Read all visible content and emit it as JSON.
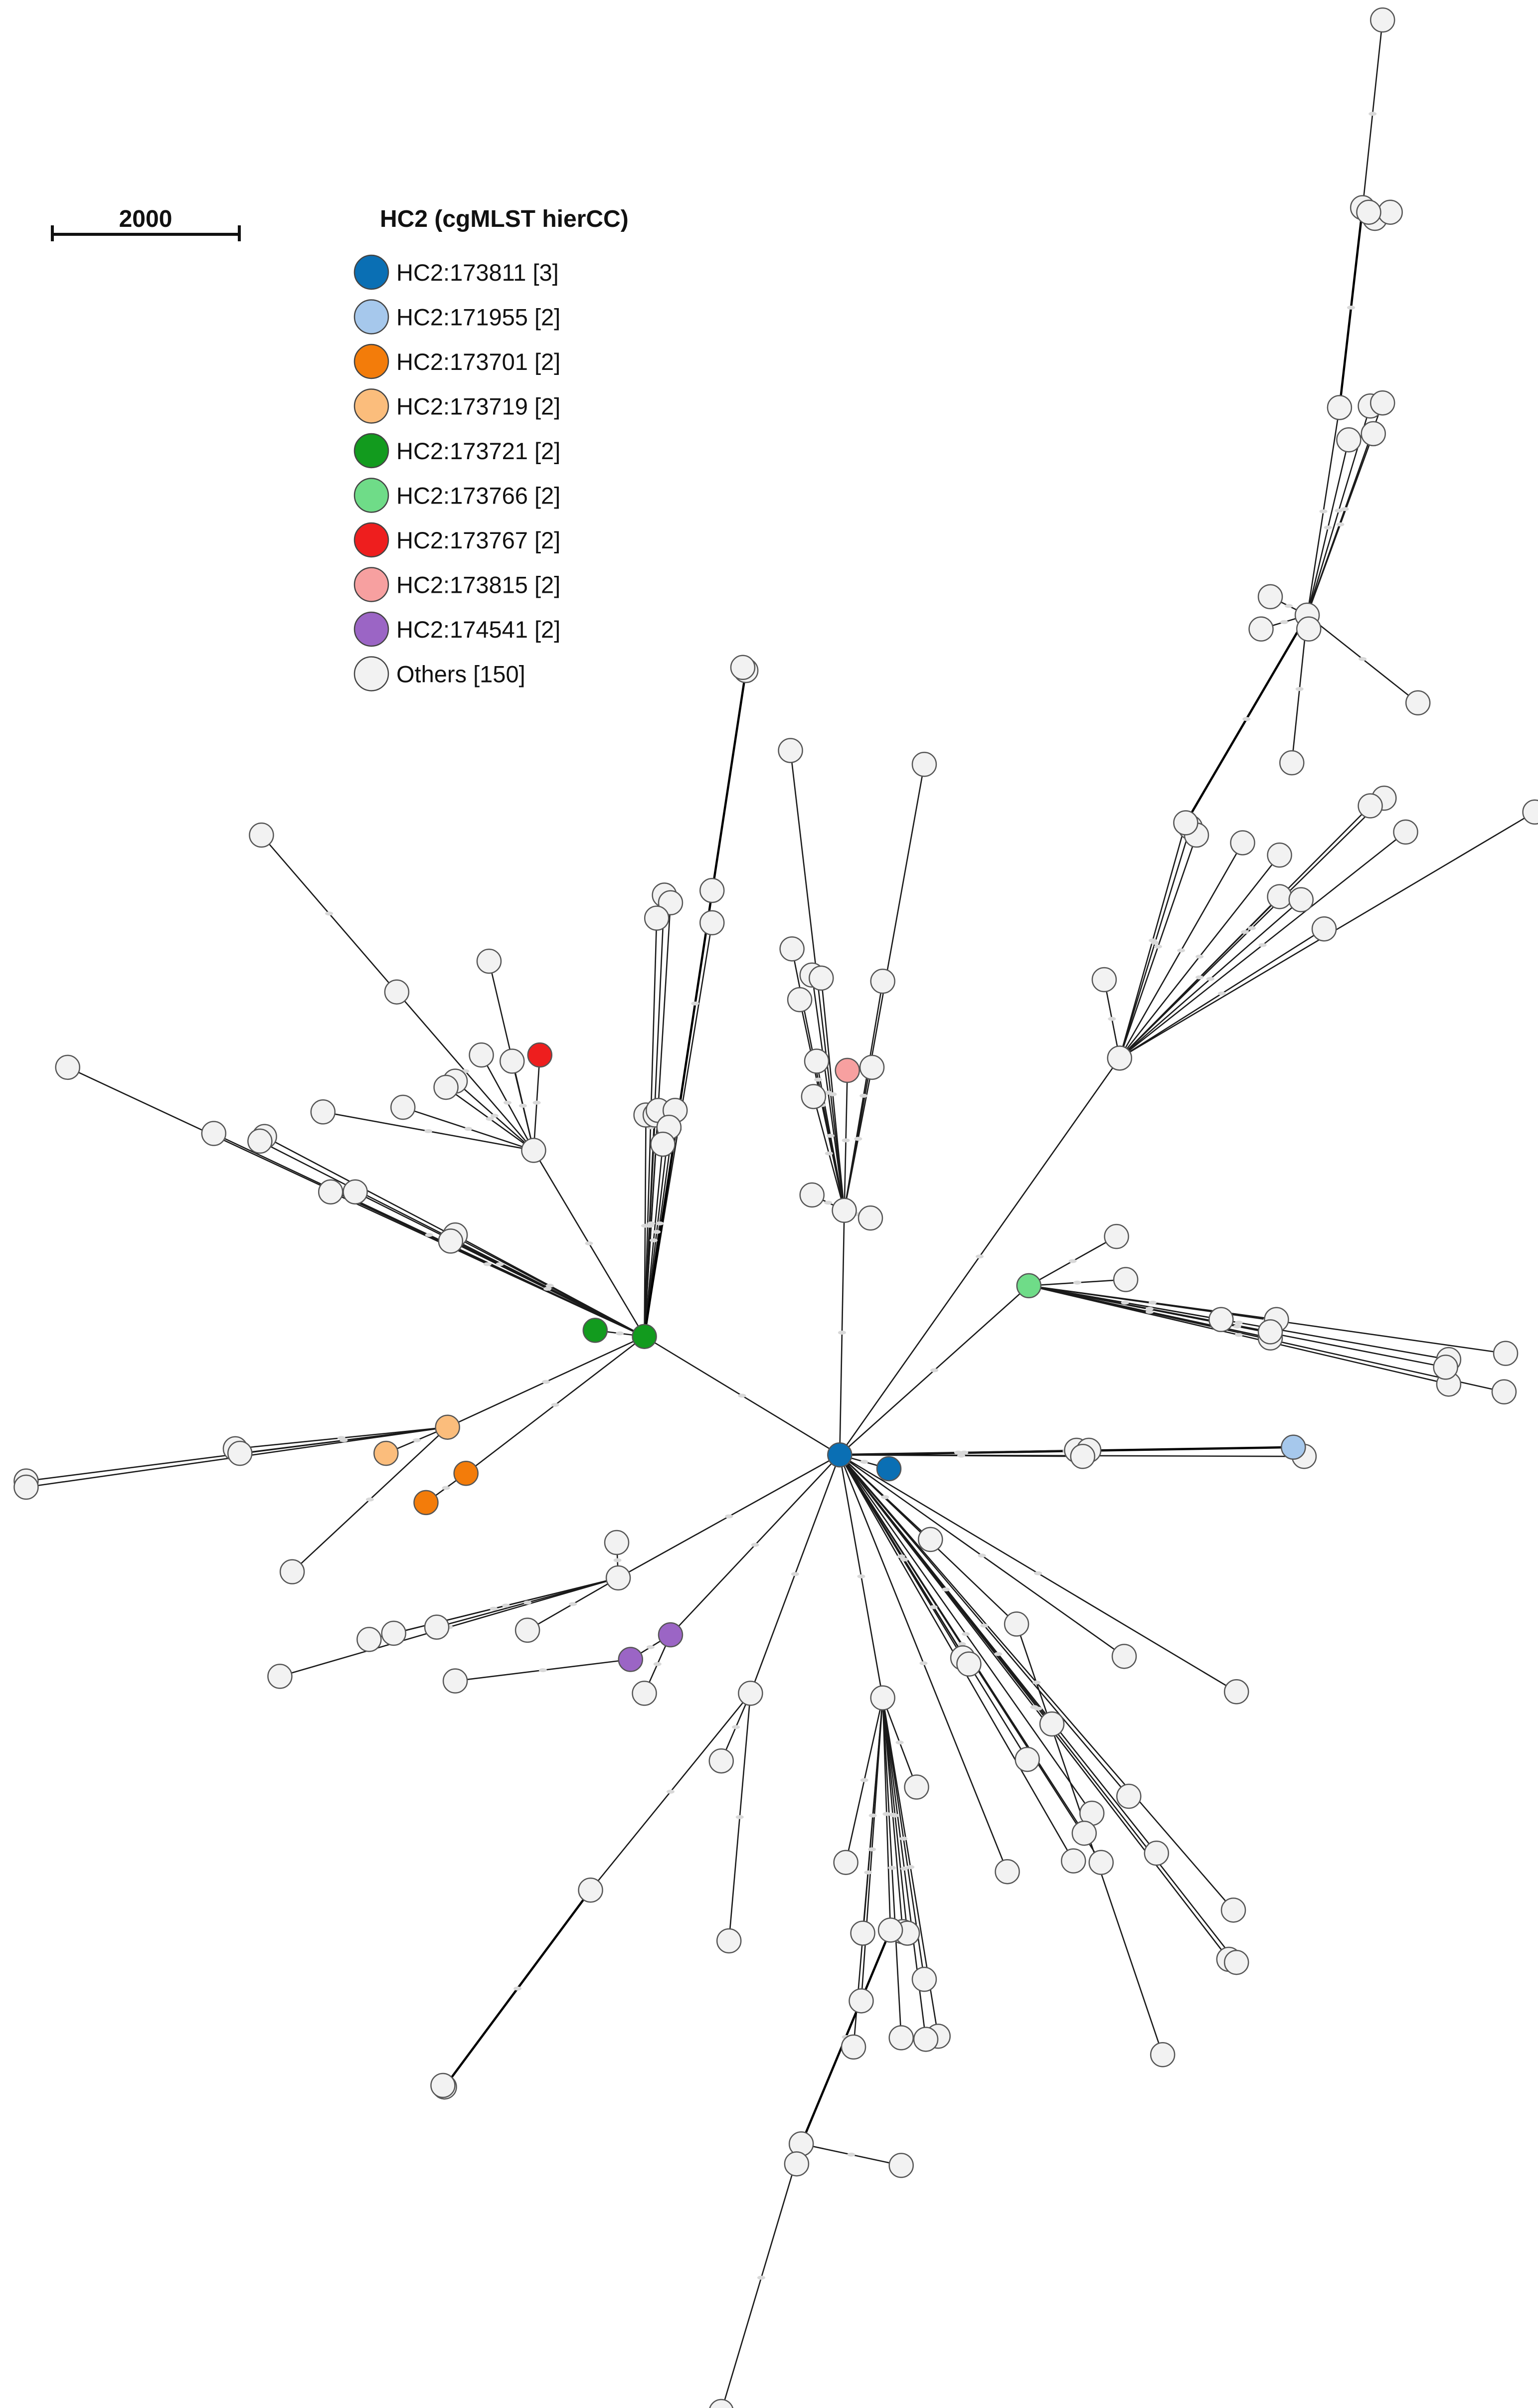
{
  "scale_bar": {
    "label": "2000"
  },
  "legend": {
    "title": "HC2 (cgMLST hierCC)",
    "items": [
      {
        "label": "HC2:173811 [3]",
        "color": "#0a6fb4"
      },
      {
        "label": "HC2:171955 [2]",
        "color": "#a6c8ec"
      },
      {
        "label": "HC2:173701 [2]",
        "color": "#f37c0a"
      },
      {
        "label": "HC2:173719 [2]",
        "color": "#fbbd7c"
      },
      {
        "label": "HC2:173721 [2]",
        "color": "#129b1e"
      },
      {
        "label": "HC2:173766 [2]",
        "color": "#6fdc88"
      },
      {
        "label": "HC2:173767 [2]",
        "color": "#ee1e1e"
      },
      {
        "label": "HC2:173815 [2]",
        "color": "#f7a0a0"
      },
      {
        "label": "HC2:174541 [2]",
        "color": "#9b65c5"
      },
      {
        "label": "Others [150]",
        "color": "#f2f2f2"
      }
    ]
  },
  "colors": {
    "edge": "#1a1a1a",
    "node_stroke": "#555555",
    "other_fill": "#f2f2f2"
  },
  "tree": {
    "type": "minimum spanning tree",
    "groups": [
      "HC2:173811",
      "HC2:171955",
      "HC2:173701",
      "HC2:173719",
      "HC2:173721",
      "HC2:173766",
      "HC2:173767",
      "HC2:173815",
      "HC2:174541",
      "Others"
    ]
  }
}
